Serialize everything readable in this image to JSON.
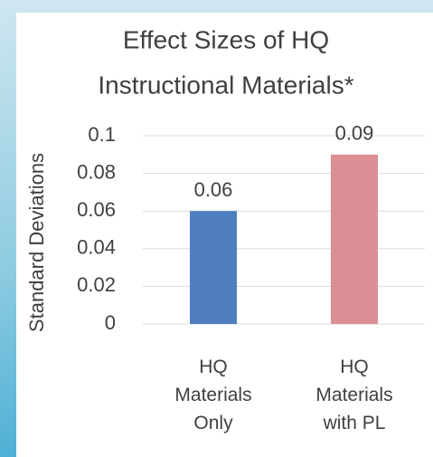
{
  "chart_data": {
    "type": "bar",
    "title": [
      "Effect Sizes of HQ",
      "Instructional Materials*"
    ],
    "y_label": "Standard Deviations",
    "categories": [
      "HQ Materials Only",
      "HQ Materials with PL"
    ],
    "values": [
      0.06,
      0.09
    ],
    "colors": [
      "#4f7fc0",
      "#d98f93"
    ],
    "ylim": [
      0,
      0.1
    ],
    "yticks": [
      0,
      0.02,
      0.04,
      0.06,
      0.08,
      0.1
    ],
    "grid": true
  }
}
